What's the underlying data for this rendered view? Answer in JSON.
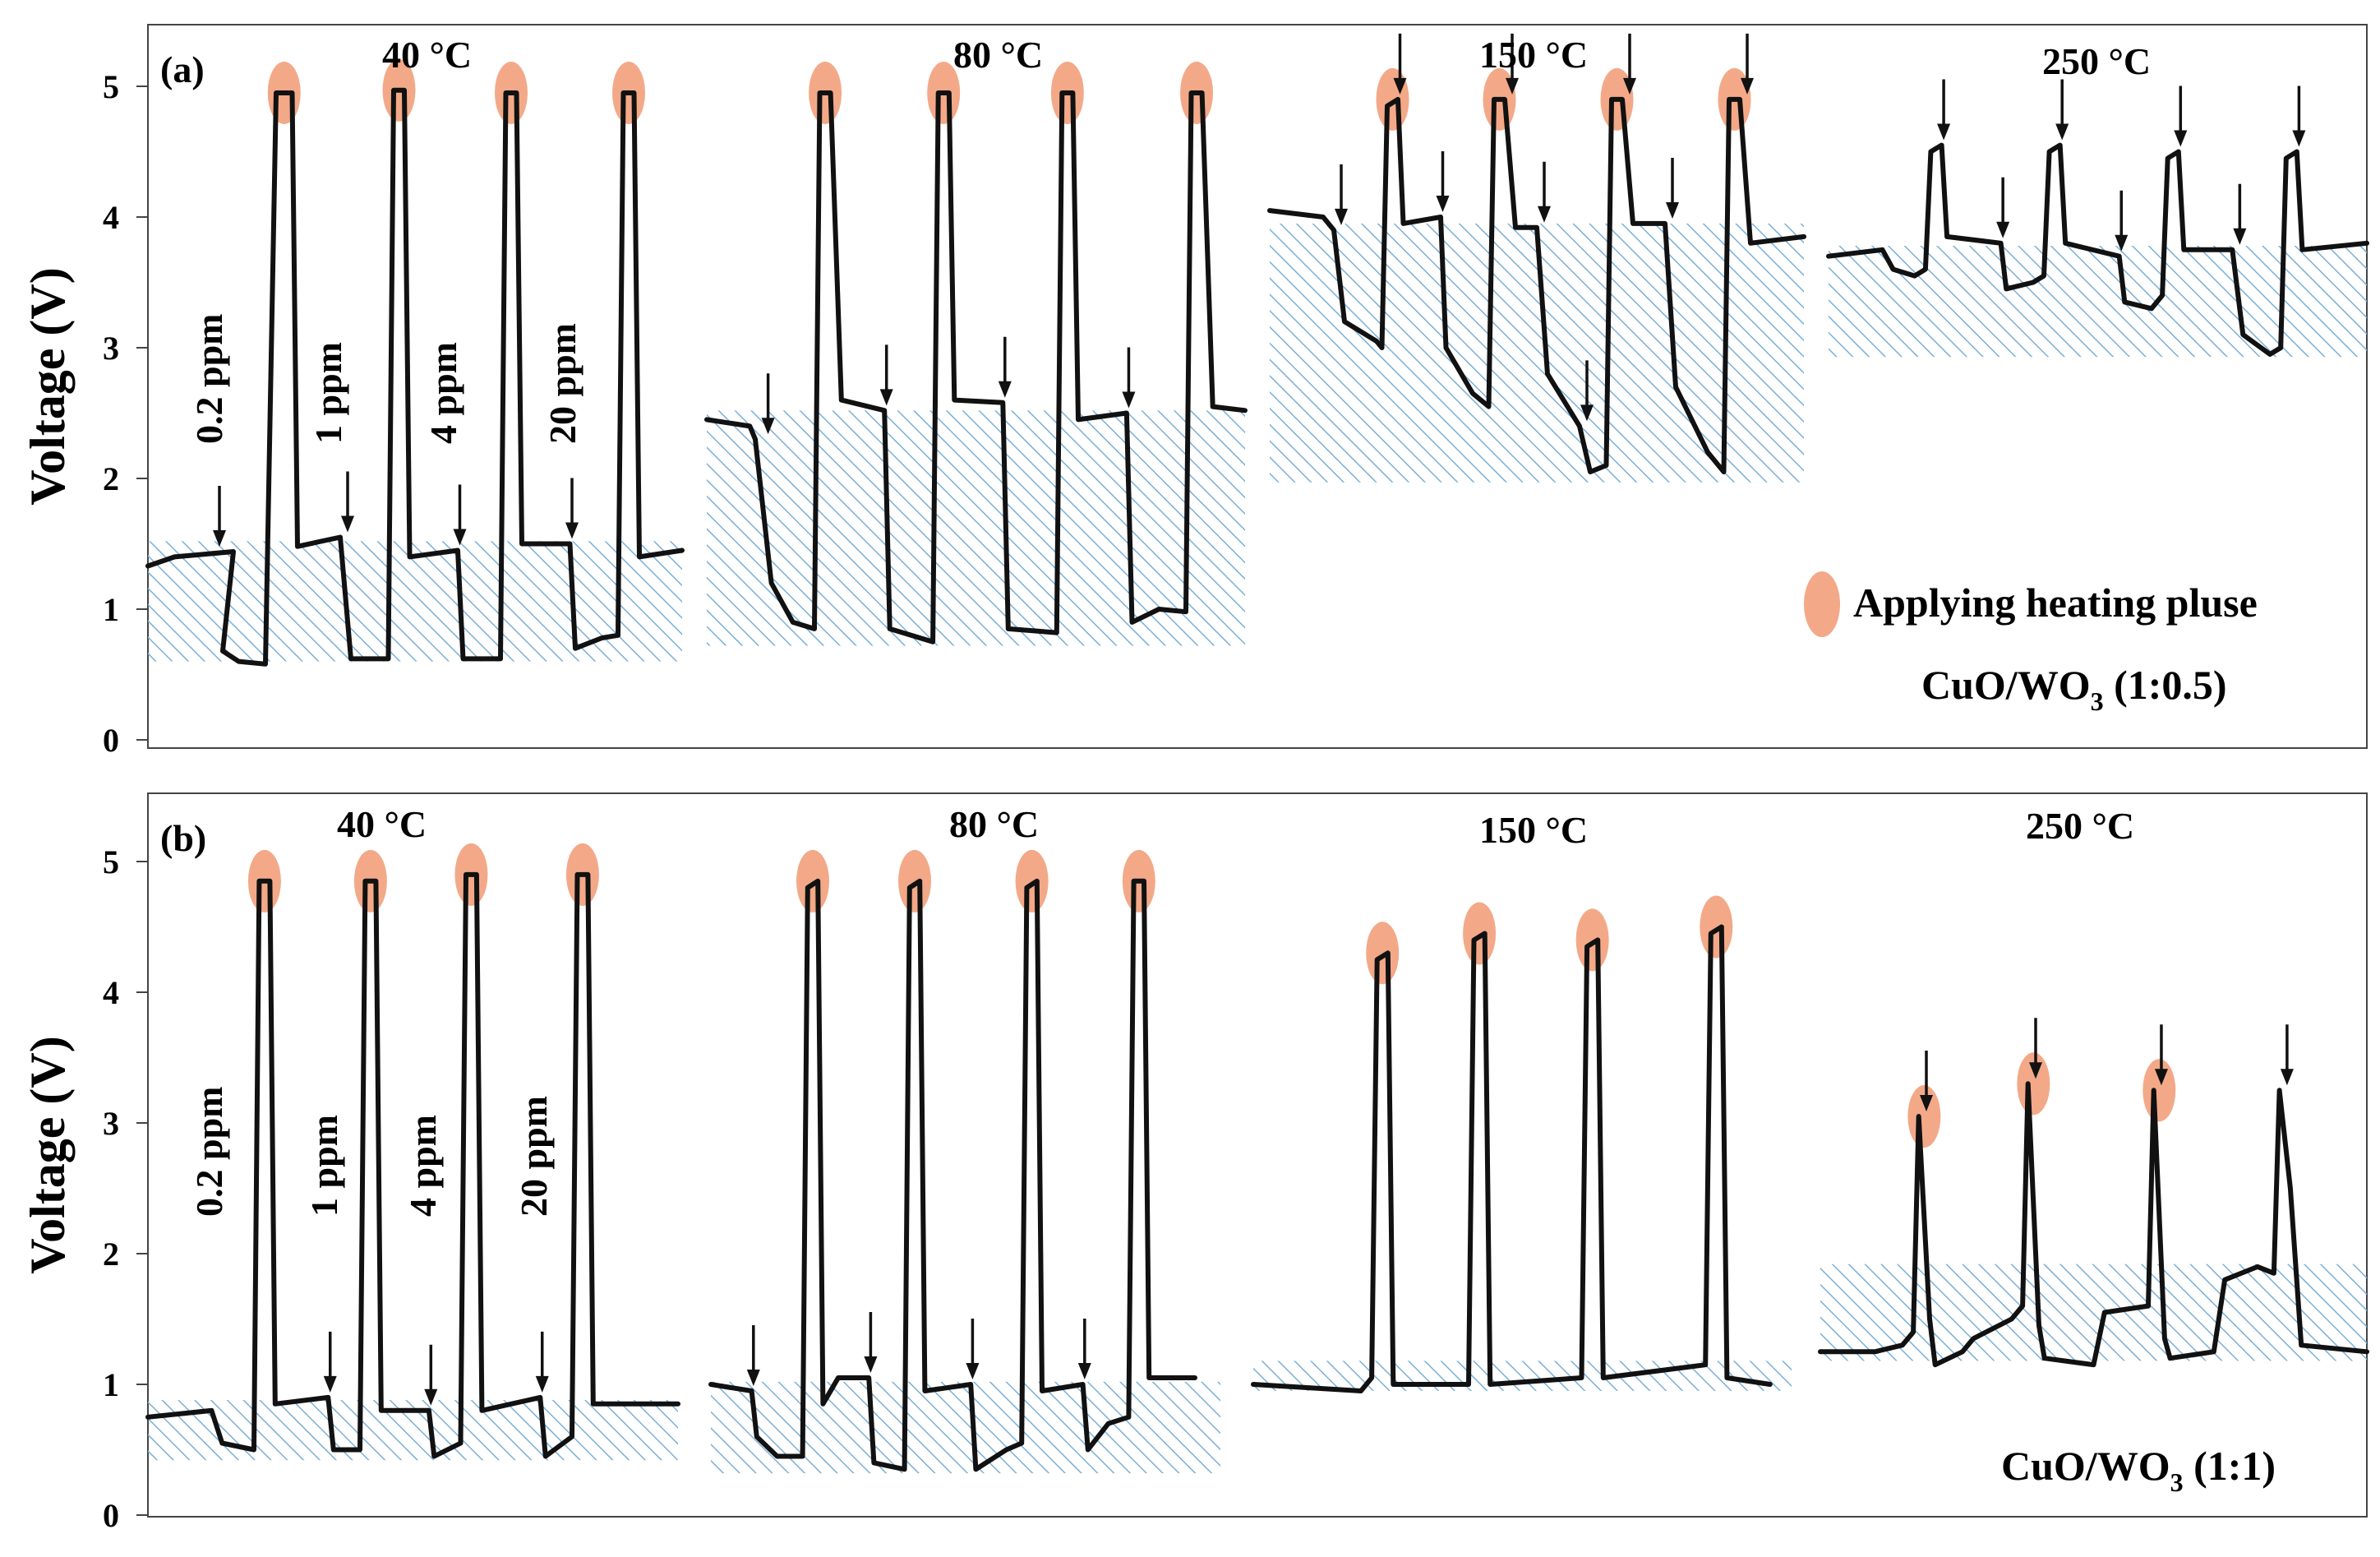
{
  "ylabel": "Voltage (V)",
  "legend_pulse_label": "Applying heating pluse",
  "chart_data": [
    {
      "type": "line",
      "panel_label": "(a)",
      "material_main": "CuO/WO",
      "material_sub": "3",
      "material_ratio": " (1:0.5)",
      "ylim": [
        0,
        5.5
      ],
      "yticks": [
        0,
        1,
        2,
        3,
        4,
        5
      ],
      "concentrations": [
        "0.2 ppm",
        "1 ppm",
        "4 ppm",
        "20 ppm"
      ],
      "segments": [
        {
          "temperature": "40 °C",
          "points": [
            [
              0,
              1.33
            ],
            [
              0.05,
              1.4
            ],
            [
              0.16,
              1.44
            ],
            [
              0.14,
              0.68
            ],
            [
              0.17,
              0.6
            ],
            [
              0.22,
              0.58
            ],
            [
              0.24,
              4.95
            ],
            [
              0.27,
              4.95
            ],
            [
              0.28,
              1.48
            ],
            [
              0.36,
              1.55
            ],
            [
              0.38,
              0.62
            ],
            [
              0.45,
              0.62
            ],
            [
              0.46,
              4.97
            ],
            [
              0.48,
              4.97
            ],
            [
              0.49,
              1.4
            ],
            [
              0.58,
              1.45
            ],
            [
              0.59,
              0.62
            ],
            [
              0.66,
              0.62
            ],
            [
              0.67,
              4.95
            ],
            [
              0.69,
              4.95
            ],
            [
              0.7,
              1.5
            ],
            [
              0.79,
              1.5
            ],
            [
              0.8,
              0.7
            ],
            [
              0.85,
              0.78
            ],
            [
              0.88,
              0.8
            ],
            [
              0.89,
              4.95
            ],
            [
              0.91,
              4.95
            ],
            [
              0.92,
              1.4
            ],
            [
              1.0,
              1.45
            ]
          ]
        },
        {
          "temperature": "80 °C",
          "points": [
            [
              0,
              2.45
            ],
            [
              0.08,
              2.4
            ],
            [
              0.09,
              2.3
            ],
            [
              0.12,
              1.2
            ],
            [
              0.16,
              0.9
            ],
            [
              0.2,
              0.85
            ],
            [
              0.21,
              4.95
            ],
            [
              0.23,
              4.95
            ],
            [
              0.25,
              2.6
            ],
            [
              0.33,
              2.52
            ],
            [
              0.34,
              0.85
            ],
            [
              0.42,
              0.75
            ],
            [
              0.43,
              4.95
            ],
            [
              0.45,
              4.95
            ],
            [
              0.46,
              2.6
            ],
            [
              0.55,
              2.58
            ],
            [
              0.56,
              0.85
            ],
            [
              0.65,
              0.82
            ],
            [
              0.66,
              4.95
            ],
            [
              0.68,
              4.95
            ],
            [
              0.69,
              2.45
            ],
            [
              0.78,
              2.5
            ],
            [
              0.79,
              0.9
            ],
            [
              0.84,
              1.0
            ],
            [
              0.89,
              0.98
            ],
            [
              0.9,
              4.95
            ],
            [
              0.92,
              4.95
            ],
            [
              0.94,
              2.55
            ],
            [
              1.0,
              2.52
            ]
          ]
        },
        {
          "temperature": "150 °C",
          "points": [
            [
              0,
              4.05
            ],
            [
              0.1,
              4.0
            ],
            [
              0.12,
              3.9
            ],
            [
              0.14,
              3.2
            ],
            [
              0.2,
              3.05
            ],
            [
              0.21,
              3.0
            ],
            [
              0.22,
              4.85
            ],
            [
              0.24,
              4.9
            ],
            [
              0.25,
              3.95
            ],
            [
              0.32,
              4.0
            ],
            [
              0.33,
              3.0
            ],
            [
              0.38,
              2.65
            ],
            [
              0.41,
              2.55
            ],
            [
              0.42,
              4.9
            ],
            [
              0.44,
              4.9
            ],
            [
              0.46,
              3.92
            ],
            [
              0.5,
              3.92
            ],
            [
              0.52,
              2.8
            ],
            [
              0.58,
              2.4
            ],
            [
              0.6,
              2.05
            ],
            [
              0.63,
              2.1
            ],
            [
              0.64,
              4.9
            ],
            [
              0.66,
              4.9
            ],
            [
              0.68,
              3.95
            ],
            [
              0.74,
              3.95
            ],
            [
              0.76,
              2.7
            ],
            [
              0.82,
              2.2
            ],
            [
              0.85,
              2.05
            ],
            [
              0.86,
              4.9
            ],
            [
              0.88,
              4.9
            ],
            [
              0.9,
              3.8
            ],
            [
              1.0,
              3.85
            ]
          ]
        },
        {
          "temperature": "250 °C",
          "points": [
            [
              0,
              3.7
            ],
            [
              0.1,
              3.75
            ],
            [
              0.12,
              3.6
            ],
            [
              0.16,
              3.55
            ],
            [
              0.18,
              3.6
            ],
            [
              0.19,
              4.5
            ],
            [
              0.21,
              4.55
            ],
            [
              0.22,
              3.85
            ],
            [
              0.32,
              3.8
            ],
            [
              0.33,
              3.45
            ],
            [
              0.38,
              3.5
            ],
            [
              0.4,
              3.55
            ],
            [
              0.41,
              4.5
            ],
            [
              0.43,
              4.55
            ],
            [
              0.44,
              3.8
            ],
            [
              0.54,
              3.7
            ],
            [
              0.55,
              3.35
            ],
            [
              0.6,
              3.3
            ],
            [
              0.62,
              3.4
            ],
            [
              0.63,
              4.45
            ],
            [
              0.65,
              4.5
            ],
            [
              0.66,
              3.75
            ],
            [
              0.75,
              3.75
            ],
            [
              0.77,
              3.1
            ],
            [
              0.82,
              2.95
            ],
            [
              0.84,
              3.0
            ],
            [
              0.85,
              4.45
            ],
            [
              0.87,
              4.5
            ],
            [
              0.88,
              3.75
            ],
            [
              1.0,
              3.8
            ]
          ]
        }
      ],
      "shading_ranges": [
        [
          0.6,
          1.52
        ],
        [
          0.72,
          2.52
        ],
        [
          1.97,
          3.95
        ],
        [
          2.93,
          3.78
        ]
      ]
    },
    {
      "type": "line",
      "panel_label": "(b)",
      "material_main": "CuO/WO",
      "material_sub": "3",
      "material_ratio": " (1:1)",
      "ylim": [
        0,
        5.5
      ],
      "yticks": [
        0,
        1,
        2,
        3,
        4,
        5
      ],
      "concentrations": [
        "0.2 ppm",
        "1 ppm",
        "4 ppm",
        "20 ppm"
      ],
      "segments": [
        {
          "temperature": "40 °C",
          "points": [
            [
              0,
              0.75
            ],
            [
              0.12,
              0.8
            ],
            [
              0.14,
              0.55
            ],
            [
              0.2,
              0.5
            ],
            [
              0.21,
              4.85
            ],
            [
              0.23,
              4.85
            ],
            [
              0.24,
              0.85
            ],
            [
              0.34,
              0.9
            ],
            [
              0.35,
              0.5
            ],
            [
              0.4,
              0.5
            ],
            [
              0.41,
              4.85
            ],
            [
              0.43,
              4.85
            ],
            [
              0.44,
              0.8
            ],
            [
              0.53,
              0.8
            ],
            [
              0.54,
              0.45
            ],
            [
              0.59,
              0.55
            ],
            [
              0.6,
              4.9
            ],
            [
              0.62,
              4.9
            ],
            [
              0.63,
              0.8
            ],
            [
              0.74,
              0.9
            ],
            [
              0.75,
              0.45
            ],
            [
              0.8,
              0.6
            ],
            [
              0.81,
              4.9
            ],
            [
              0.83,
              4.9
            ],
            [
              0.84,
              0.85
            ],
            [
              1.0,
              0.85
            ]
          ]
        },
        {
          "temperature": "80 °C",
          "points": [
            [
              0,
              1.0
            ],
            [
              0.08,
              0.95
            ],
            [
              0.09,
              0.6
            ],
            [
              0.13,
              0.45
            ],
            [
              0.18,
              0.45
            ],
            [
              0.19,
              4.8
            ],
            [
              0.21,
              4.85
            ],
            [
              0.22,
              0.85
            ],
            [
              0.25,
              1.05
            ],
            [
              0.31,
              1.05
            ],
            [
              0.32,
              0.4
            ],
            [
              0.38,
              0.35
            ],
            [
              0.39,
              4.8
            ],
            [
              0.41,
              4.85
            ],
            [
              0.42,
              0.95
            ],
            [
              0.51,
              1.0
            ],
            [
              0.52,
              0.35
            ],
            [
              0.58,
              0.5
            ],
            [
              0.61,
              0.55
            ],
            [
              0.62,
              4.8
            ],
            [
              0.64,
              4.85
            ],
            [
              0.65,
              0.95
            ],
            [
              0.73,
              1.0
            ],
            [
              0.74,
              0.5
            ],
            [
              0.78,
              0.7
            ],
            [
              0.82,
              0.75
            ],
            [
              0.83,
              4.85
            ],
            [
              0.85,
              4.85
            ],
            [
              0.86,
              1.05
            ],
            [
              0.95,
              1.05
            ]
          ]
        },
        {
          "temperature": "150 °C",
          "points": [
            [
              0,
              1.0
            ],
            [
              0.2,
              0.95
            ],
            [
              0.22,
              1.05
            ],
            [
              0.23,
              4.25
            ],
            [
              0.25,
              4.3
            ],
            [
              0.26,
              1.0
            ],
            [
              0.4,
              1.0
            ],
            [
              0.41,
              4.4
            ],
            [
              0.43,
              4.45
            ],
            [
              0.44,
              1.0
            ],
            [
              0.61,
              1.05
            ],
            [
              0.62,
              4.35
            ],
            [
              0.64,
              4.4
            ],
            [
              0.65,
              1.05
            ],
            [
              0.84,
              1.15
            ],
            [
              0.85,
              4.45
            ],
            [
              0.87,
              4.5
            ],
            [
              0.88,
              1.05
            ],
            [
              0.96,
              1.0
            ]
          ]
        },
        {
          "temperature": "250 °C",
          "points": [
            [
              0,
              1.25
            ],
            [
              0.1,
              1.25
            ],
            [
              0.15,
              1.3
            ],
            [
              0.17,
              1.4
            ],
            [
              0.18,
              3.05
            ],
            [
              0.2,
              1.5
            ],
            [
              0.21,
              1.15
            ],
            [
              0.26,
              1.25
            ],
            [
              0.28,
              1.35
            ],
            [
              0.35,
              1.5
            ],
            [
              0.37,
              1.6
            ],
            [
              0.38,
              3.3
            ],
            [
              0.4,
              1.45
            ],
            [
              0.41,
              1.2
            ],
            [
              0.5,
              1.15
            ],
            [
              0.52,
              1.55
            ],
            [
              0.6,
              1.6
            ],
            [
              0.61,
              3.25
            ],
            [
              0.63,
              1.35
            ],
            [
              0.64,
              1.2
            ],
            [
              0.72,
              1.25
            ],
            [
              0.74,
              1.8
            ],
            [
              0.8,
              1.9
            ],
            [
              0.83,
              1.85
            ],
            [
              0.84,
              3.25
            ],
            [
              0.86,
              2.5
            ],
            [
              0.88,
              1.3
            ],
            [
              1.0,
              1.25
            ]
          ]
        }
      ],
      "shading_ranges": [
        [
          0.42,
          0.88
        ],
        [
          0.32,
          1.02
        ],
        [
          0.95,
          1.18
        ],
        [
          1.18,
          1.92
        ]
      ]
    }
  ]
}
